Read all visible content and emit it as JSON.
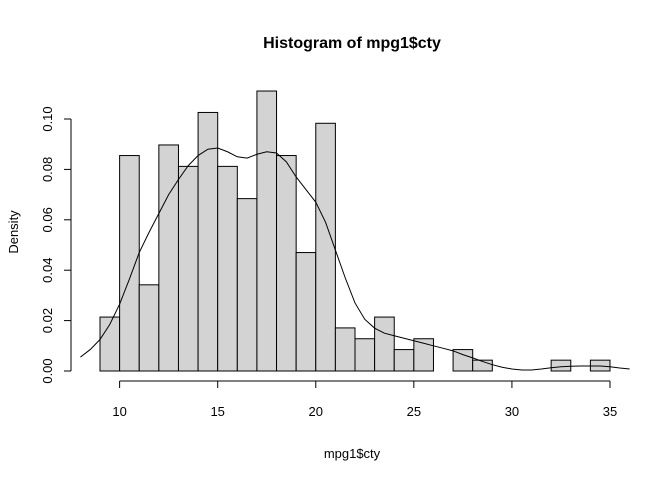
{
  "chart_data": {
    "type": "bar",
    "title": "Histogram of mpg1$cty",
    "xlabel": "mpg1$cty",
    "ylabel": "Density",
    "xlim": [
      9,
      35
    ],
    "ylim": [
      0,
      0.11
    ],
    "x_ticks": [
      10,
      15,
      20,
      25,
      30,
      35
    ],
    "y_ticks": [
      0.0,
      0.02,
      0.04,
      0.06,
      0.08,
      0.1
    ],
    "y_tick_labels": [
      "0.00",
      "0.02",
      "0.04",
      "0.06",
      "0.08",
      "0.10"
    ],
    "bin_width": 1,
    "bins": [
      {
        "start": 9,
        "end": 10,
        "density": 0.0214
      },
      {
        "start": 10,
        "end": 11,
        "density": 0.0855
      },
      {
        "start": 11,
        "end": 12,
        "density": 0.0342
      },
      {
        "start": 12,
        "end": 13,
        "density": 0.0897
      },
      {
        "start": 13,
        "end": 14,
        "density": 0.0812
      },
      {
        "start": 14,
        "end": 15,
        "density": 0.1026
      },
      {
        "start": 15,
        "end": 16,
        "density": 0.0812
      },
      {
        "start": 16,
        "end": 17,
        "density": 0.0684
      },
      {
        "start": 17,
        "end": 18,
        "density": 0.1111
      },
      {
        "start": 18,
        "end": 19,
        "density": 0.0855
      },
      {
        "start": 19,
        "end": 20,
        "density": 0.047
      },
      {
        "start": 20,
        "end": 21,
        "density": 0.0983
      },
      {
        "start": 21,
        "end": 22,
        "density": 0.0171
      },
      {
        "start": 22,
        "end": 23,
        "density": 0.0128
      },
      {
        "start": 23,
        "end": 24,
        "density": 0.0214
      },
      {
        "start": 24,
        "end": 25,
        "density": 0.0085
      },
      {
        "start": 25,
        "end": 26,
        "density": 0.0128
      },
      {
        "start": 26,
        "end": 27,
        "density": 0.0
      },
      {
        "start": 27,
        "end": 28,
        "density": 0.0085
      },
      {
        "start": 28,
        "end": 29,
        "density": 0.0043
      },
      {
        "start": 29,
        "end": 30,
        "density": 0.0
      },
      {
        "start": 30,
        "end": 31,
        "density": 0.0
      },
      {
        "start": 31,
        "end": 32,
        "density": 0.0
      },
      {
        "start": 32,
        "end": 33,
        "density": 0.0043
      },
      {
        "start": 33,
        "end": 34,
        "density": 0.0
      },
      {
        "start": 34,
        "end": 35,
        "density": 0.0043
      }
    ],
    "density_curve": {
      "x": [
        8.0,
        8.5,
        9.0,
        9.5,
        10.0,
        10.5,
        11.0,
        11.5,
        12.0,
        12.5,
        13.0,
        13.5,
        14.0,
        14.5,
        15.0,
        15.5,
        16.0,
        16.5,
        17.0,
        17.5,
        18.0,
        18.5,
        19.0,
        19.5,
        20.0,
        20.5,
        21.0,
        21.5,
        22.0,
        22.5,
        23.0,
        23.5,
        24.0,
        24.5,
        25.0,
        25.5,
        26.0,
        26.5,
        27.0,
        27.5,
        28.0,
        28.5,
        29.0,
        29.5,
        30.0,
        30.5,
        31.0,
        31.5,
        32.0,
        32.5,
        33.0,
        33.5,
        34.0,
        34.5,
        35.0,
        35.5,
        36.0
      ],
      "y": [
        0.0055,
        0.0085,
        0.0125,
        0.0185,
        0.0265,
        0.0365,
        0.047,
        0.055,
        0.0625,
        0.07,
        0.076,
        0.0815,
        0.0855,
        0.088,
        0.0885,
        0.087,
        0.085,
        0.0845,
        0.086,
        0.087,
        0.0865,
        0.083,
        0.077,
        0.072,
        0.067,
        0.059,
        0.048,
        0.037,
        0.027,
        0.0205,
        0.017,
        0.015,
        0.014,
        0.013,
        0.012,
        0.011,
        0.01,
        0.009,
        0.008,
        0.0065,
        0.0052,
        0.0038,
        0.0025,
        0.0015,
        0.0008,
        0.0004,
        0.0004,
        0.0008,
        0.0013,
        0.0017,
        0.0019,
        0.002,
        0.002,
        0.002,
        0.0017,
        0.0012,
        0.0008
      ]
    }
  }
}
